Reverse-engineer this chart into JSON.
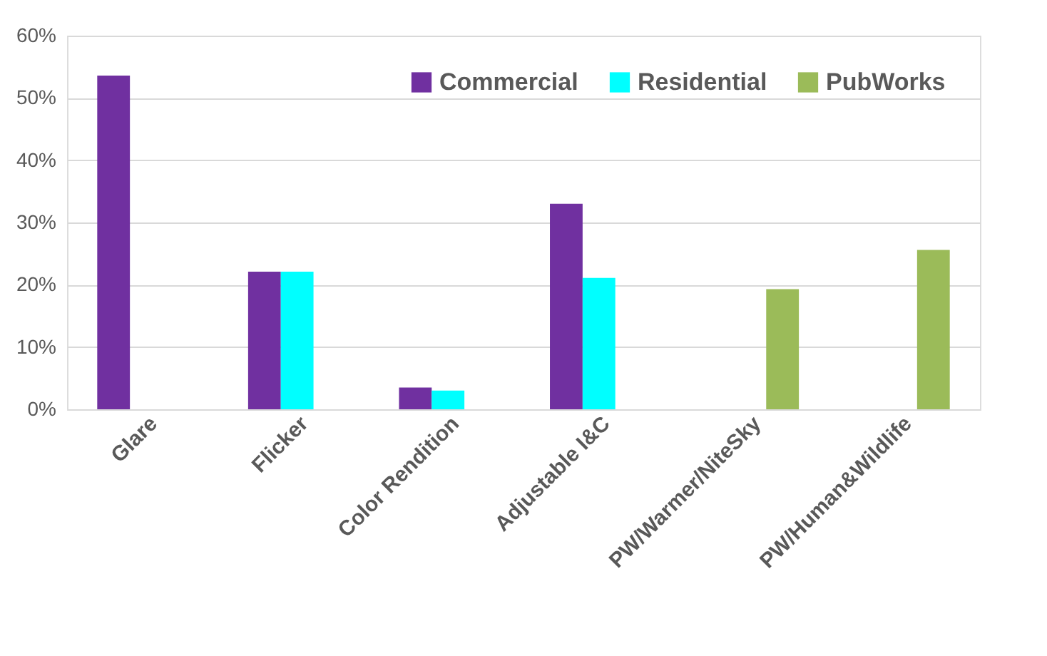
{
  "chart_data": {
    "type": "bar",
    "categories": [
      "Glare",
      "Flicker",
      "Color Rendition",
      "Adjustable I&C",
      "PW/Warmer/NiteSky",
      "PW/Human&Wildlife"
    ],
    "series": [
      {
        "name": "Commercial",
        "color": "#7030a0",
        "values": [
          53.6,
          22.1,
          3.5,
          33.0,
          null,
          null
        ]
      },
      {
        "name": "Residential",
        "color": "#00ffff",
        "values": [
          null,
          22.1,
          3.0,
          21.1,
          null,
          null
        ]
      },
      {
        "name": "PubWorks",
        "color": "#9bbb59",
        "values": [
          null,
          null,
          null,
          null,
          19.3,
          25.6
        ]
      }
    ],
    "ylim": [
      0,
      60
    ],
    "yticks": [
      {
        "value": 0,
        "label": "0%"
      },
      {
        "value": 10,
        "label": "10%"
      },
      {
        "value": 20,
        "label": "20%"
      },
      {
        "value": 30,
        "label": "30%"
      },
      {
        "value": 40,
        "label": "40%"
      },
      {
        "value": 50,
        "label": "50%"
      },
      {
        "value": 60,
        "label": "60%"
      }
    ],
    "grid": "y",
    "legend": "top right"
  }
}
